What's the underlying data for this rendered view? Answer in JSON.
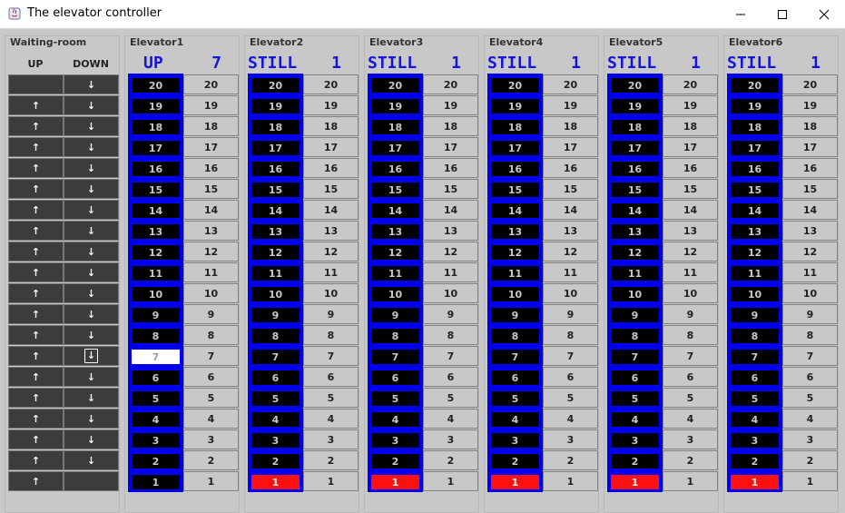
{
  "window": {
    "title": "The elevator controller",
    "controls": {
      "minimize": "—",
      "maximize": "☐",
      "close": "✕"
    }
  },
  "waiting_room": {
    "title": "Waiting-room",
    "up_label": "UP",
    "down_label": "DOWN",
    "up_arrow": "↑",
    "down_arrow": "↓",
    "floors": [
      20,
      19,
      18,
      17,
      16,
      15,
      14,
      13,
      12,
      11,
      10,
      9,
      8,
      7,
      6,
      5,
      4,
      3,
      2,
      1
    ],
    "pressed_down_floor": 7
  },
  "elevators": [
    {
      "name": "Elevator1",
      "status": "UP",
      "floor": "7",
      "current_floor": 7,
      "highlight": "white"
    },
    {
      "name": "Elevator2",
      "status": "STILL",
      "floor": "1",
      "current_floor": 1,
      "highlight": "red"
    },
    {
      "name": "Elevator3",
      "status": "STILL",
      "floor": "1",
      "current_floor": 1,
      "highlight": "red"
    },
    {
      "name": "Elevator4",
      "status": "STILL",
      "floor": "1",
      "current_floor": 1,
      "highlight": "red"
    },
    {
      "name": "Elevator5",
      "status": "STILL",
      "floor": "1",
      "current_floor": 1,
      "highlight": "red"
    },
    {
      "name": "Elevator6",
      "status": "STILL",
      "floor": "1",
      "current_floor": 1,
      "highlight": "red"
    }
  ],
  "floors": [
    20,
    19,
    18,
    17,
    16,
    15,
    14,
    13,
    12,
    11,
    10,
    9,
    8,
    7,
    6,
    5,
    4,
    3,
    2,
    1
  ],
  "colors": {
    "shaft": "#0000ee",
    "current": "#ff1010",
    "status_text": "#1414dc",
    "button_dark": "#3c3c3c"
  }
}
